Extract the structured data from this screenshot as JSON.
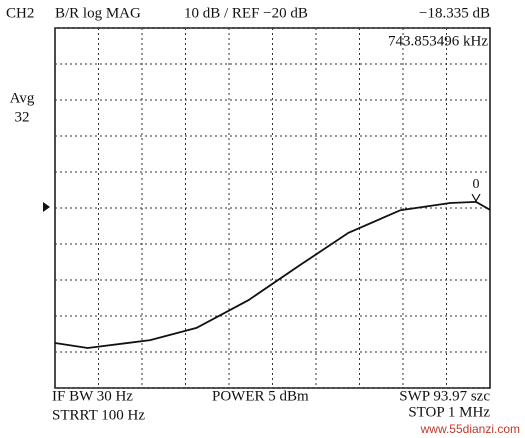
{
  "chart_data": {
    "type": "line",
    "header": [
      "CH2",
      "B/R log MAG",
      "10 dB / REF −20 dB",
      "−18.335 dB"
    ],
    "side_labels": [
      "Avg",
      "32"
    ],
    "footer": [
      "IF BW 30 Hz",
      "POWER 5 dBm",
      "SWP 93.97 szc",
      "STRRT 100 Hz",
      "STOP 1 MHz"
    ],
    "watermark": "www.55dianzi.com",
    "log_x": true,
    "xlim": [
      100,
      1000000
    ],
    "ylim": [
      -70,
      30
    ],
    "yticks": [
      -70,
      -60,
      -50,
      -40,
      -30,
      -20,
      -10,
      0,
      10,
      20,
      30
    ],
    "grid": true,
    "x": [
      100,
      200,
      750,
      2000,
      6000,
      18000,
      50000,
      150000,
      430000,
      744000,
      1000000
    ],
    "series": [
      {
        "name": "CH2",
        "color": "#111111",
        "values": [
          -57.5,
          -58.9,
          -56.7,
          -53.3,
          -45.6,
          -35.8,
          -26.9,
          -20.6,
          -18.6,
          -18.3,
          -20.5
        ]
      }
    ],
    "marker": {
      "label": "0",
      "x": 743853.496,
      "x_label": "743.853496 kHz",
      "value": -18.335
    }
  }
}
